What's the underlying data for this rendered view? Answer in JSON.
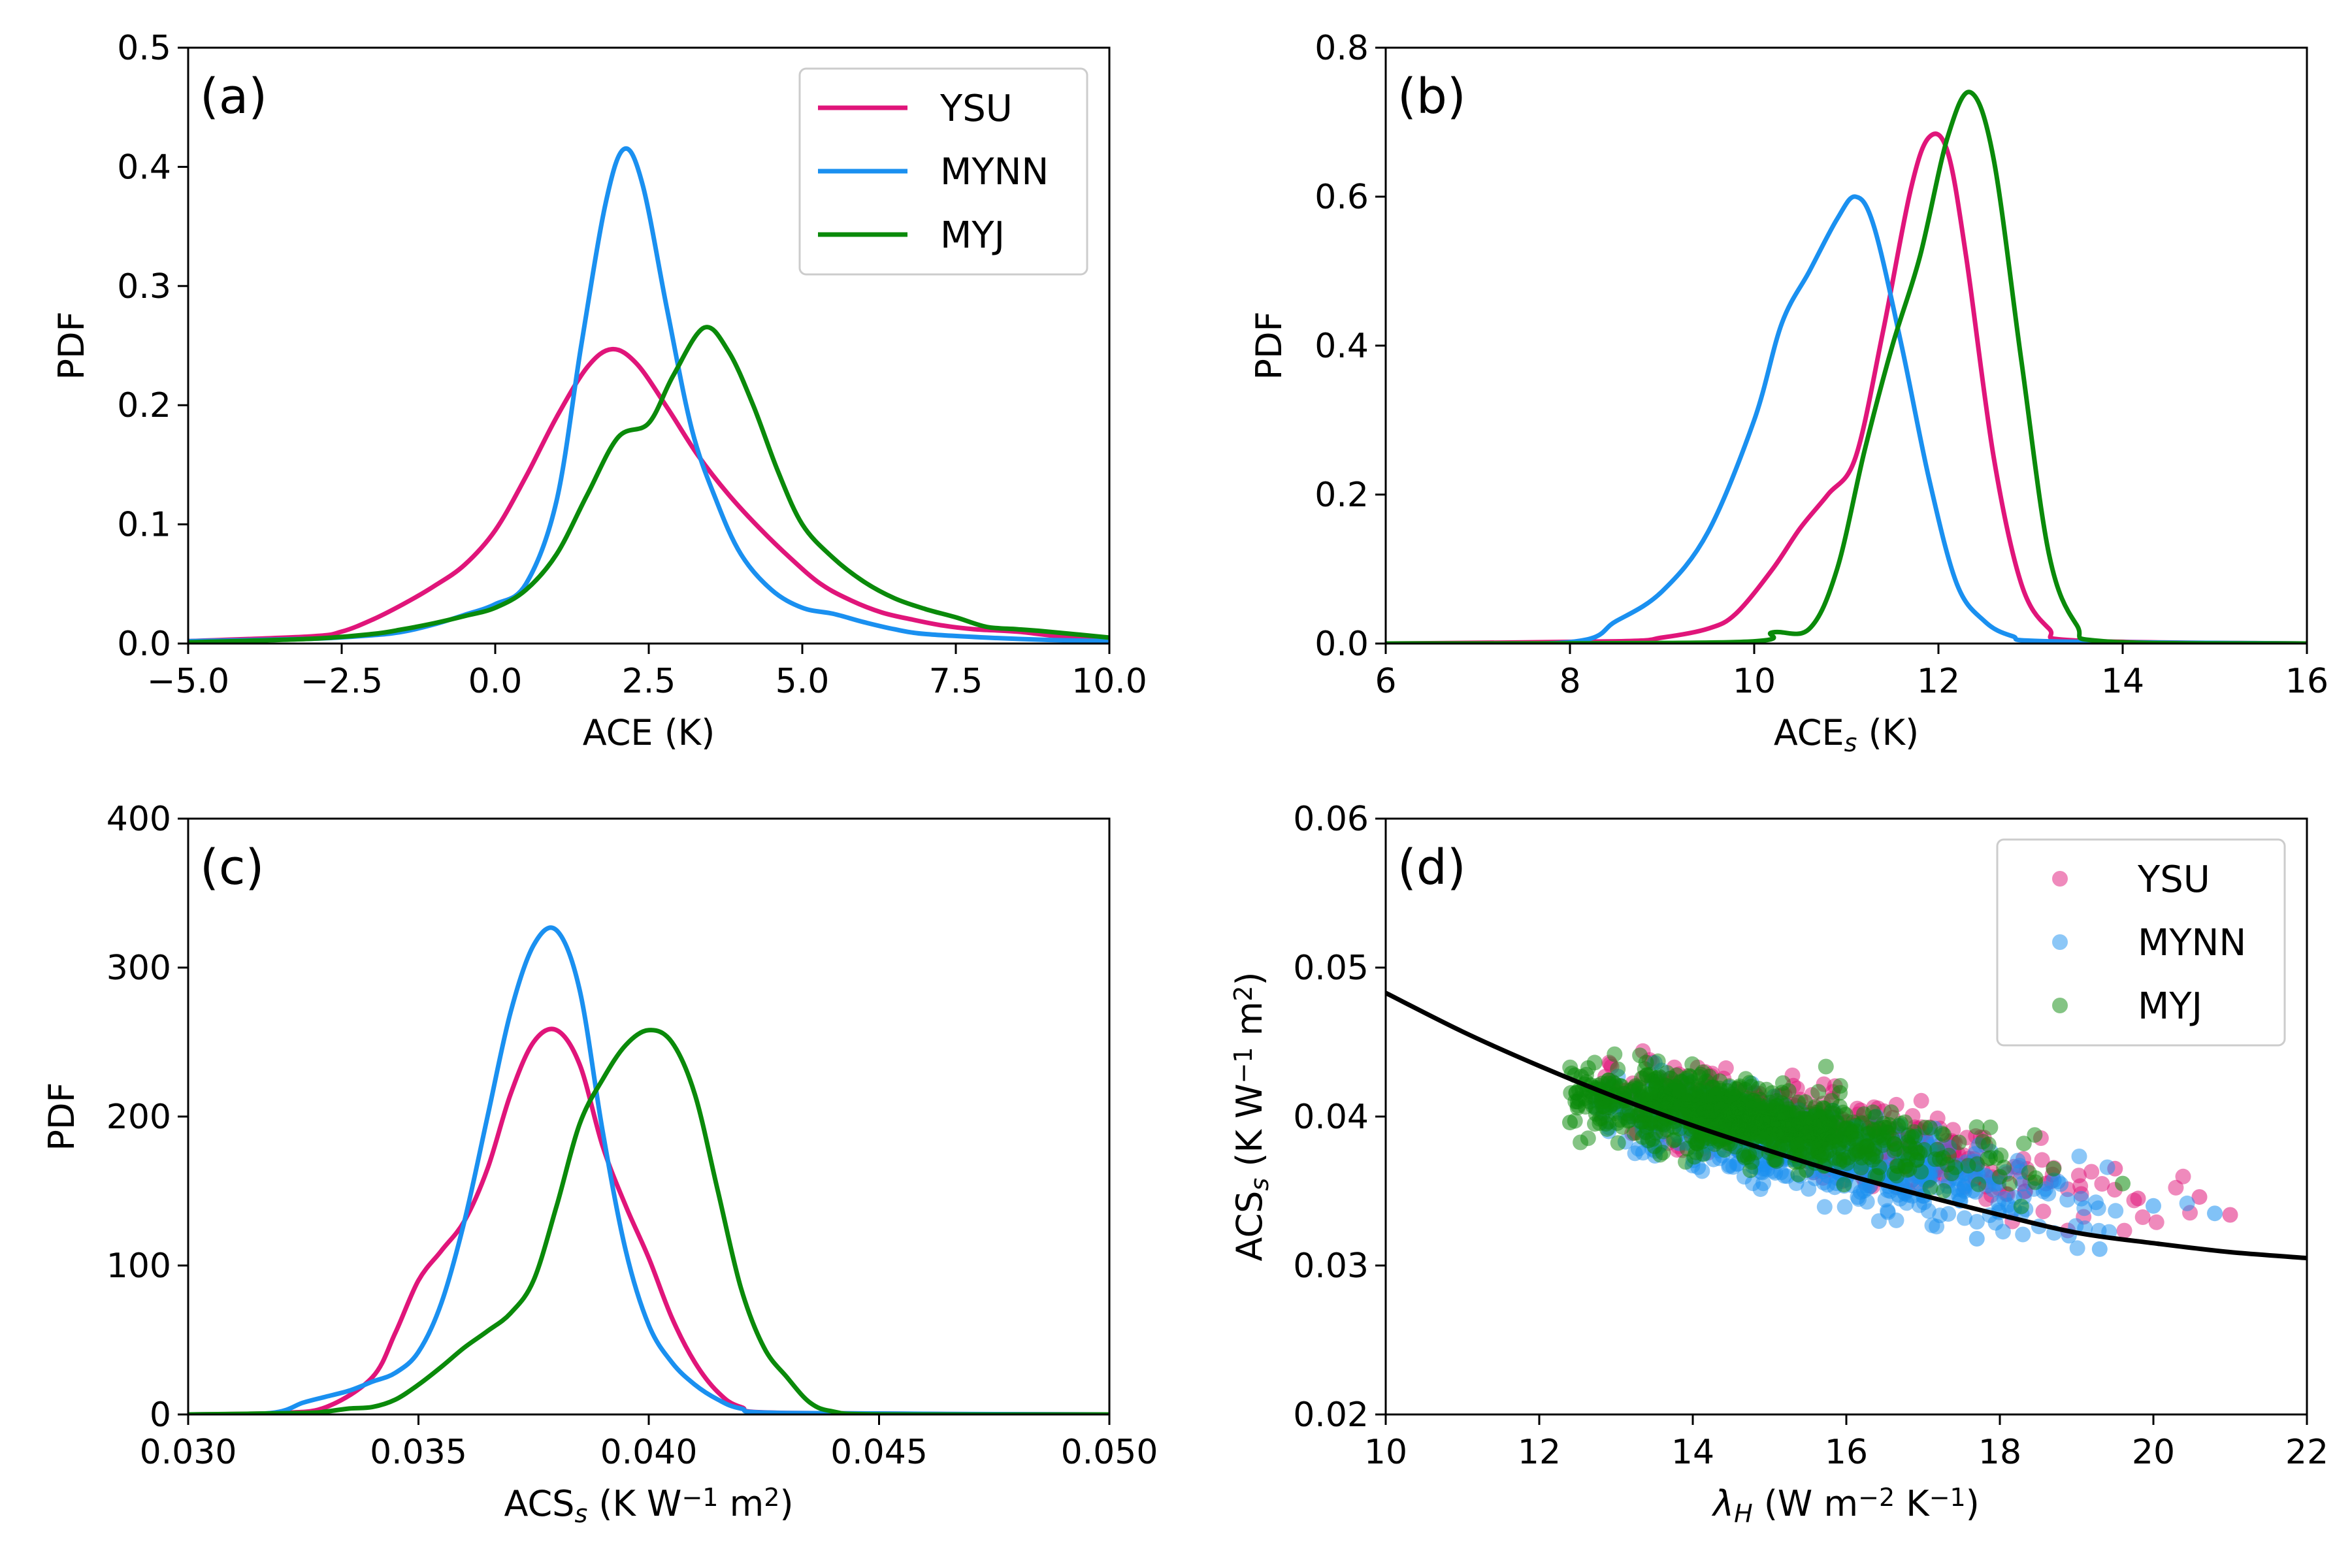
{
  "colors": {
    "YSU": "#e0157a",
    "MYNN": "#1a90f0",
    "MYJ": "#0a8a0a",
    "curve": "#000000"
  },
  "chart_data": [
    {
      "type": "line",
      "panel": "(a)",
      "xlabel": "ACE (K)",
      "ylabel": "PDF",
      "xlim": [
        -5,
        10
      ],
      "ylim": [
        0,
        0.5
      ],
      "xticks": [
        -5,
        -2.5,
        0,
        2.5,
        5,
        7.5,
        10
      ],
      "xtick_labels": [
        "−5.0",
        "−2.5",
        "0.0",
        "2.5",
        "5.0",
        "7.5",
        "10.0"
      ],
      "yticks": [
        0,
        0.1,
        0.2,
        0.3,
        0.4,
        0.5
      ],
      "ytick_labels": [
        "0.0",
        "0.1",
        "0.2",
        "0.3",
        "0.4",
        "0.5"
      ],
      "legend": {
        "placement": "top-right",
        "entries": [
          "YSU",
          "MYNN",
          "MYJ"
        ]
      },
      "series": [
        {
          "name": "YSU",
          "x": [
            -5,
            -3,
            -2.5,
            -2,
            -1.5,
            -1,
            -0.5,
            0,
            0.5,
            1,
            1.5,
            1.9,
            2.3,
            2.8,
            3.3,
            3.8,
            4.3,
            4.8,
            5.3,
            5.8,
            6.3,
            6.8,
            7.3,
            7.8,
            8.5,
            9.2,
            10
          ],
          "y": [
            0.002,
            0.006,
            0.01,
            0.02,
            0.033,
            0.048,
            0.066,
            0.095,
            0.14,
            0.19,
            0.232,
            0.247,
            0.235,
            0.198,
            0.158,
            0.125,
            0.097,
            0.072,
            0.05,
            0.036,
            0.026,
            0.02,
            0.015,
            0.012,
            0.01,
            0.006,
            0.004
          ]
        },
        {
          "name": "MYNN",
          "x": [
            -5,
            -3,
            -2,
            -1.5,
            -1,
            -0.5,
            0,
            0.5,
            1,
            1.4,
            1.8,
            2.1,
            2.4,
            2.8,
            3.2,
            3.6,
            4,
            4.5,
            5,
            5.5,
            6,
            6.5,
            7,
            8,
            9,
            10
          ],
          "y": [
            0.002,
            0.004,
            0.007,
            0.01,
            0.016,
            0.024,
            0.033,
            0.05,
            0.12,
            0.25,
            0.37,
            0.415,
            0.385,
            0.28,
            0.18,
            0.12,
            0.075,
            0.045,
            0.03,
            0.025,
            0.018,
            0.012,
            0.008,
            0.005,
            0.003,
            0.002
          ]
        },
        {
          "name": "MYJ",
          "x": [
            -5,
            -3,
            -2,
            -1.5,
            -1,
            -0.5,
            0,
            0.5,
            1,
            1.5,
            2,
            2.5,
            2.9,
            3.4,
            3.8,
            4.2,
            4.6,
            5,
            5.5,
            6,
            6.5,
            7,
            7.5,
            8,
            8.5,
            9,
            10
          ],
          "y": [
            0.001,
            0.004,
            0.008,
            0.012,
            0.017,
            0.023,
            0.03,
            0.045,
            0.075,
            0.125,
            0.173,
            0.185,
            0.225,
            0.265,
            0.245,
            0.2,
            0.145,
            0.1,
            0.072,
            0.052,
            0.038,
            0.029,
            0.022,
            0.014,
            0.012,
            0.01,
            0.005
          ]
        }
      ]
    },
    {
      "type": "line",
      "panel": "(b)",
      "xlabel_main": "ACE",
      "xlabel_sub": "s",
      "xlabel_tail": " (K)",
      "ylabel": "PDF",
      "xlim": [
        6,
        16
      ],
      "ylim": [
        0,
        0.8
      ],
      "xticks": [
        6,
        8,
        10,
        12,
        14,
        16
      ],
      "xtick_labels": [
        "6",
        "8",
        "10",
        "12",
        "14",
        "16"
      ],
      "yticks": [
        0,
        0.2,
        0.4,
        0.6,
        0.8
      ],
      "ytick_labels": [
        "0.0",
        "0.2",
        "0.4",
        "0.6",
        "0.8"
      ],
      "series": [
        {
          "name": "YSU",
          "x": [
            6,
            8.5,
            9,
            9.5,
            9.8,
            10.2,
            10.5,
            10.8,
            11.1,
            11.4,
            11.7,
            11.9,
            12.1,
            12.3,
            12.6,
            12.9,
            13.2,
            13.5,
            16
          ],
          "y": [
            0,
            0.003,
            0.008,
            0.02,
            0.04,
            0.1,
            0.155,
            0.2,
            0.25,
            0.42,
            0.61,
            0.68,
            0.66,
            0.52,
            0.25,
            0.08,
            0.02,
            0.004,
            0
          ]
        },
        {
          "name": "MYNN",
          "x": [
            6,
            8,
            8.5,
            9,
            9.5,
            10,
            10.3,
            10.6,
            10.9,
            11.1,
            11.3,
            11.6,
            11.9,
            12.2,
            12.5,
            12.8,
            13.2,
            16
          ],
          "y": [
            0,
            0.002,
            0.03,
            0.07,
            0.15,
            0.3,
            0.43,
            0.5,
            0.57,
            0.6,
            0.56,
            0.4,
            0.22,
            0.08,
            0.03,
            0.01,
            0.003,
            0
          ]
        },
        {
          "name": "MYJ",
          "x": [
            6,
            9.8,
            10.2,
            10.6,
            10.9,
            11.2,
            11.5,
            11.8,
            12.1,
            12.35,
            12.6,
            12.9,
            13.2,
            13.5,
            13.8,
            16
          ],
          "y": [
            0,
            0.002,
            0.015,
            0.02,
            0.1,
            0.26,
            0.4,
            0.52,
            0.68,
            0.74,
            0.65,
            0.38,
            0.12,
            0.025,
            0.003,
            0
          ]
        }
      ]
    },
    {
      "type": "line",
      "panel": "(c)",
      "xlabel_main": "ACS",
      "xlabel_sub": "s",
      "xlabel_tail": " (K W",
      "xlabel_sup1": "−1",
      "xlabel_tail2": " m",
      "xlabel_sup2": "2",
      "xlabel_tail3": ")",
      "ylabel": "PDF",
      "xlim": [
        0.03,
        0.05
      ],
      "ylim": [
        0,
        400
      ],
      "xticks": [
        0.03,
        0.035,
        0.04,
        0.045,
        0.05
      ],
      "xtick_labels": [
        "0.030",
        "0.035",
        "0.040",
        "0.045",
        "0.050"
      ],
      "yticks": [
        0,
        100,
        200,
        300,
        400
      ],
      "ytick_labels": [
        "0",
        "100",
        "200",
        "300",
        "400"
      ],
      "series": [
        {
          "name": "YSU",
          "x": [
            0.03,
            0.032,
            0.033,
            0.034,
            0.0345,
            0.035,
            0.0355,
            0.036,
            0.0365,
            0.037,
            0.0375,
            0.038,
            0.0385,
            0.039,
            0.0395,
            0.04,
            0.0405,
            0.041,
            0.0415,
            0.042,
            0.043,
            0.05
          ],
          "y": [
            0,
            1,
            5,
            25,
            55,
            90,
            110,
            130,
            165,
            215,
            250,
            258,
            235,
            180,
            140,
            105,
            65,
            35,
            15,
            5,
            1,
            0
          ]
        },
        {
          "name": "MYNN",
          "x": [
            0.03,
            0.0318,
            0.0325,
            0.033,
            0.0335,
            0.034,
            0.0345,
            0.035,
            0.0355,
            0.036,
            0.0365,
            0.037,
            0.0375,
            0.038,
            0.0385,
            0.039,
            0.0395,
            0.04,
            0.0405,
            0.041,
            0.0415,
            0.042,
            0.043,
            0.05
          ],
          "y": [
            0,
            1,
            8,
            12,
            16,
            22,
            28,
            42,
            75,
            130,
            200,
            270,
            315,
            325,
            285,
            190,
            110,
            60,
            35,
            20,
            10,
            4,
            1,
            0
          ]
        },
        {
          "name": "MYJ",
          "x": [
            0.03,
            0.0325,
            0.033,
            0.0335,
            0.034,
            0.0345,
            0.035,
            0.0355,
            0.036,
            0.0365,
            0.037,
            0.0375,
            0.038,
            0.0385,
            0.039,
            0.0395,
            0.04,
            0.0405,
            0.041,
            0.0415,
            0.042,
            0.0425,
            0.043,
            0.0435,
            0.044,
            0.045,
            0.05
          ],
          "y": [
            0,
            1,
            2,
            4,
            5,
            10,
            20,
            32,
            45,
            56,
            68,
            90,
            140,
            195,
            225,
            248,
            258,
            250,
            215,
            150,
            85,
            45,
            25,
            8,
            2,
            0,
            0
          ]
        }
      ]
    },
    {
      "type": "scatter",
      "panel": "(d)",
      "xlabel_main": "λ",
      "xlabel_sub": "H",
      "xlabel_tail": " (W m",
      "xlabel_sup1": "−2",
      "xlabel_tail2": " K",
      "xlabel_sup2": "−1",
      "xlabel_tail3": ")",
      "ylabel_main": "ACS",
      "ylabel_sub": "s",
      "ylabel_tail": " (K W",
      "ylabel_sup1": "−1",
      "ylabel_tail2": " m",
      "ylabel_sup2": "2",
      "ylabel_tail3": ")",
      "xlim": [
        10,
        22
      ],
      "ylim": [
        0.02,
        0.06
      ],
      "xticks": [
        10,
        12,
        14,
        16,
        18,
        20,
        22
      ],
      "xtick_labels": [
        "10",
        "12",
        "14",
        "16",
        "18",
        "20",
        "22"
      ],
      "yticks": [
        0.02,
        0.03,
        0.04,
        0.05,
        0.06
      ],
      "ytick_labels": [
        "0.02",
        "0.03",
        "0.04",
        "0.05",
        "0.06"
      ],
      "legend": {
        "placement": "top-right",
        "entries": [
          "YSU",
          "MYNN",
          "MYJ"
        ]
      },
      "fit_curve": {
        "x": [
          10,
          11,
          12,
          13,
          14,
          15,
          16,
          17,
          18,
          19,
          20,
          21,
          22
        ],
        "y": [
          0.0483,
          0.0457,
          0.0434,
          0.0413,
          0.0394,
          0.0377,
          0.0361,
          0.0347,
          0.0334,
          0.0322,
          0.0315,
          0.0309,
          0.0305
        ]
      },
      "scatter_clusters": [
        {
          "name": "YSU",
          "x_range": [
            12.8,
            21
          ],
          "trend": [
            [
              13,
              0.0415
            ],
            [
              15,
              0.0395
            ],
            [
              17,
              0.0375
            ],
            [
              19,
              0.0355
            ],
            [
              21,
              0.0335
            ]
          ],
          "spread": 0.0017,
          "extremes": [
            [
              19.5,
              0.0365
            ],
            [
              20.6,
              0.0346
            ],
            [
              21.0,
              0.0334
            ],
            [
              19.8,
              0.0345
            ],
            [
              18.6,
              0.0355
            ]
          ]
        },
        {
          "name": "MYNN",
          "x_range": [
            12.7,
            20.8
          ],
          "trend": [
            [
              13,
              0.0405
            ],
            [
              15,
              0.0383
            ],
            [
              17,
              0.0362
            ],
            [
              19,
              0.034
            ],
            [
              20.8,
              0.033
            ]
          ],
          "spread": 0.0018,
          "extremes": [
            [
              19.3,
              0.0311
            ],
            [
              20.0,
              0.034
            ],
            [
              20.8,
              0.0335
            ],
            [
              18.9,
              0.032
            ],
            [
              17.7,
              0.0318
            ]
          ]
        },
        {
          "name": "MYJ",
          "x_range": [
            12.4,
            19.6
          ],
          "trend": [
            [
              12.5,
              0.0415
            ],
            [
              14,
              0.0405
            ],
            [
              16,
              0.0385
            ],
            [
              18,
              0.0368
            ],
            [
              19.5,
              0.0355
            ]
          ],
          "spread": 0.0016,
          "extremes": [
            [
              12.4,
              0.0396
            ],
            [
              12.5,
              0.041
            ],
            [
              19.6,
              0.0355
            ],
            [
              18.7,
              0.0365
            ]
          ]
        }
      ]
    }
  ]
}
